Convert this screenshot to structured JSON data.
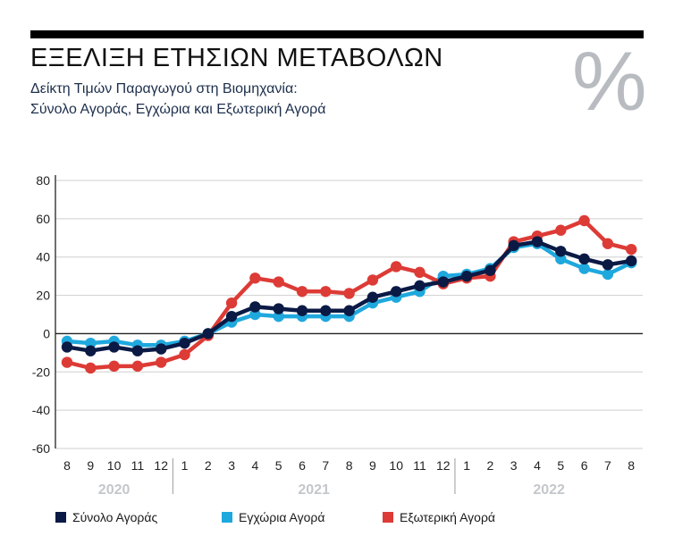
{
  "header": {
    "title": "ΕΞΕΛΙΞΗ ΕΤΗΣΙΩΝ ΜΕΤΑΒΟΛΩΝ",
    "subtitle_line1": "Δείκτη Τιμών Παραγωγού στη Βιομηχανία:",
    "subtitle_line2": "Σύνολο Αγοράς, Εγχώρια και Εξωτερική Αγορά",
    "percent_glyph": "%"
  },
  "colors": {
    "total": "#0b1a45",
    "domestic": "#1fa8dd",
    "external": "#dd3b36",
    "axis": "#222222",
    "grid": "#cfcfcf"
  },
  "chart_data": {
    "type": "line",
    "ylim": [
      -60,
      80
    ],
    "yticks": [
      -60,
      -40,
      -20,
      0,
      20,
      40,
      60,
      80
    ],
    "grid": true,
    "legend_position": "bottom",
    "categories": [
      "8",
      "9",
      "10",
      "11",
      "12",
      "1",
      "2",
      "3",
      "4",
      "5",
      "6",
      "7",
      "8",
      "9",
      "10",
      "11",
      "12",
      "1",
      "2",
      "3",
      "4",
      "5",
      "6",
      "7",
      "8"
    ],
    "years": [
      {
        "label": "2020",
        "from": 0,
        "to": 4
      },
      {
        "label": "2021",
        "from": 5,
        "to": 16
      },
      {
        "label": "2022",
        "from": 17,
        "to": 24
      }
    ],
    "series": [
      {
        "key": "total",
        "name": "Σύνολο Αγοράς",
        "values": [
          -7,
          -9,
          -7,
          -9,
          -8,
          -5,
          0,
          9,
          14,
          13,
          12,
          12,
          12,
          19,
          22,
          25,
          27,
          30,
          33,
          46,
          48,
          43,
          39,
          36,
          38
        ]
      },
      {
        "key": "domestic",
        "name": "Εγχώρια Αγορά",
        "values": [
          -4,
          -5,
          -4,
          -6,
          -6,
          -4,
          0,
          6,
          10,
          9,
          9,
          9,
          9,
          16,
          19,
          22,
          30,
          31,
          34,
          45,
          47,
          39,
          34,
          31,
          37
        ]
      },
      {
        "key": "external",
        "name": "Εξωτερική Αγορά",
        "values": [
          -15,
          -18,
          -17,
          -17,
          -15,
          -11,
          -1,
          16,
          29,
          27,
          22,
          22,
          21,
          28,
          35,
          32,
          26,
          29,
          30,
          48,
          51,
          54,
          59,
          47,
          44
        ]
      }
    ]
  }
}
